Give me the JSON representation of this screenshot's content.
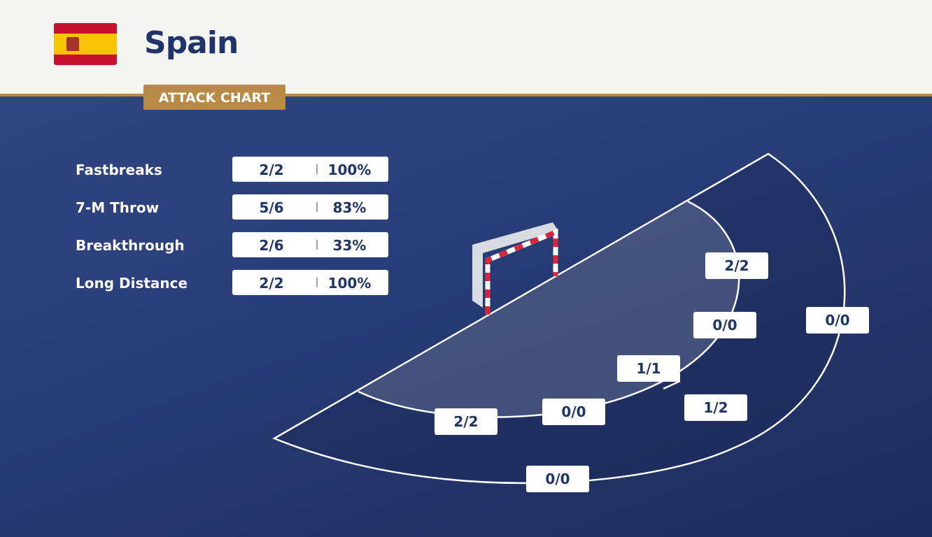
{
  "header": {
    "title": "Spain",
    "badge": "ATTACK CHART"
  },
  "stats": {
    "rows": [
      {
        "label": "Fastbreaks",
        "score": "2/2",
        "pct": "100%"
      },
      {
        "label": "7-M Throw",
        "score": "5/6",
        "pct": "83%"
      },
      {
        "label": "Breakthrough",
        "score": "2/6",
        "pct": "33%"
      },
      {
        "label": "Long Distance",
        "score": "2/2",
        "pct": "100%"
      }
    ]
  },
  "zones": [
    "2/2",
    "0/0",
    "0/0",
    "1/1",
    "1/2",
    "0/0",
    "2/2",
    "0/0"
  ]
}
